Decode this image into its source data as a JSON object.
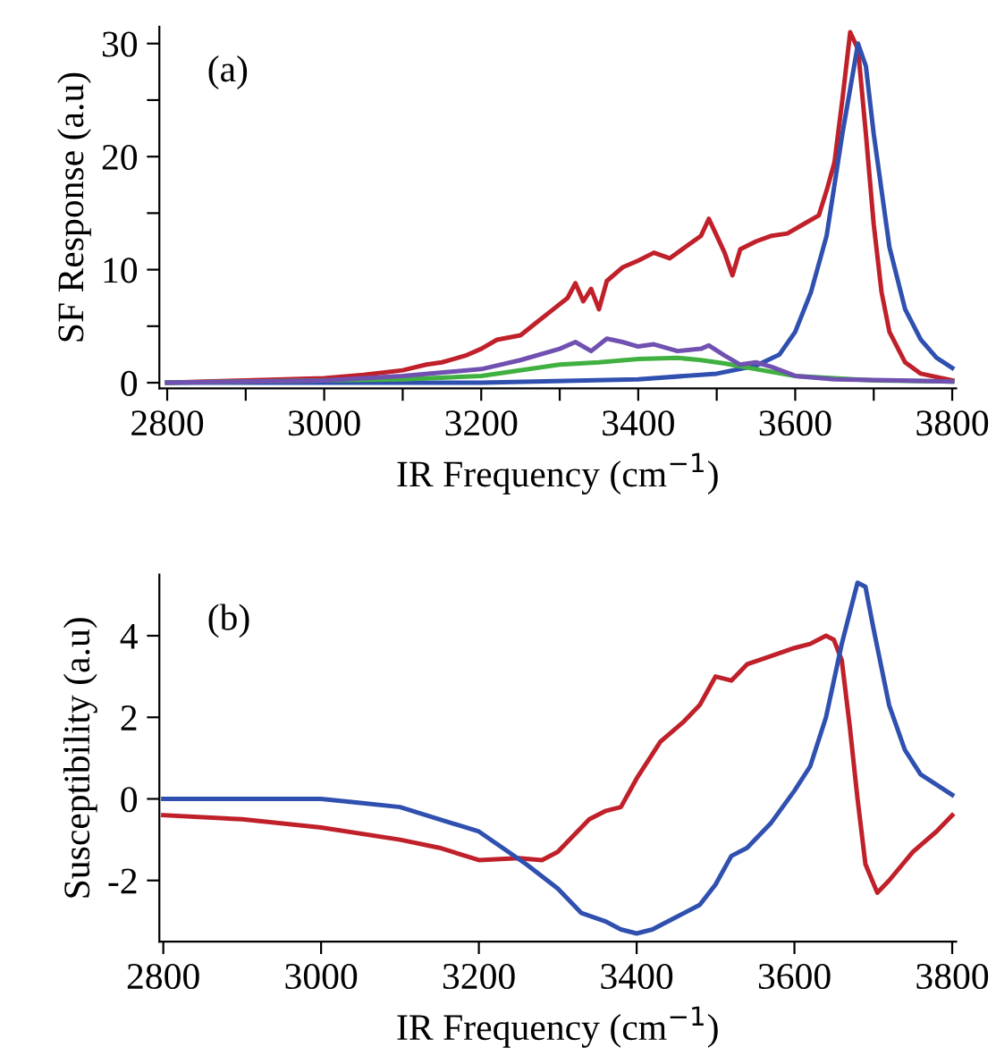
{
  "chart_data": [
    {
      "type": "line",
      "xlabel": "IR Frequency (cm$^{−1}$)",
      "ylabel": "SF Response (a.u)",
      "annotations": [
        "(a)"
      ],
      "xlim": [
        2790,
        3805
      ],
      "ylim": [
        -0.5,
        31.5
      ],
      "xticks": [
        2800,
        {
          "value": 2900,
          "label": null
        },
        3000,
        {
          "value": 3100,
          "label": null
        },
        3200,
        {
          "value": 3300,
          "label": null
        },
        3400,
        {
          "value": 3500,
          "label": null
        },
        3600,
        {
          "value": 3700,
          "label": null
        },
        3800
      ],
      "yticks": [
        0,
        {
          "value": 5,
          "label": null
        },
        10,
        {
          "value": 15,
          "label": null
        },
        20,
        {
          "value": 25,
          "label": null
        },
        30
      ],
      "grid": false,
      "legend": false,
      "line_style": "solid",
      "marker": "none",
      "series": [
        {
          "color": "#c0202a",
          "x": [
            2800,
            2900,
            3000,
            3050,
            3100,
            3130,
            3150,
            3180,
            3200,
            3220,
            3250,
            3270,
            3290,
            3310,
            3320,
            3330,
            3340,
            3350,
            3360,
            3380,
            3400,
            3420,
            3440,
            3460,
            3480,
            3490,
            3500,
            3510,
            3520,
            3530,
            3550,
            3570,
            3590,
            3610,
            3630,
            3640,
            3650,
            3660,
            3670,
            3680,
            3690,
            3700,
            3710,
            3720,
            3740,
            3760,
            3800
          ],
          "values": [
            0,
            0.2,
            0.4,
            0.7,
            1.1,
            1.6,
            1.8,
            2.4,
            3.0,
            3.8,
            4.2,
            5.3,
            6.4,
            7.5,
            8.8,
            7.2,
            8.3,
            6.5,
            9.0,
            10.2,
            10.8,
            11.5,
            11.0,
            12.0,
            13.0,
            14.5,
            13.0,
            11.5,
            9.5,
            11.8,
            12.5,
            13.0,
            13.2,
            14.0,
            14.8,
            17.0,
            19.5,
            25,
            31,
            29.5,
            22,
            14,
            8,
            4.5,
            1.8,
            0.8,
            0.2
          ]
        },
        {
          "color": "#3050b0",
          "x": [
            2800,
            3200,
            3400,
            3500,
            3550,
            3580,
            3600,
            3620,
            3640,
            3660,
            3680,
            3690,
            3700,
            3720,
            3740,
            3760,
            3780,
            3800
          ],
          "values": [
            0,
            0,
            0.3,
            0.8,
            1.5,
            2.5,
            4.5,
            8,
            13,
            22,
            30,
            28,
            22,
            12,
            6.5,
            3.8,
            2.2,
            1.3
          ]
        },
        {
          "color": "#40b040",
          "x": [
            2800,
            3100,
            3200,
            3300,
            3350,
            3400,
            3450,
            3480,
            3510,
            3550,
            3600,
            3700,
            3800
          ],
          "values": [
            0,
            0.3,
            0.6,
            1.6,
            1.8,
            2.1,
            2.2,
            2.0,
            1.7,
            1.2,
            0.6,
            0.2,
            0.1
          ]
        },
        {
          "color": "#7050b0",
          "x": [
            2800,
            3000,
            3100,
            3200,
            3250,
            3300,
            3320,
            3340,
            3360,
            3380,
            3400,
            3420,
            3450,
            3480,
            3490,
            3510,
            3530,
            3550,
            3570,
            3600,
            3650,
            3800
          ],
          "values": [
            0,
            0.2,
            0.6,
            1.2,
            2.0,
            3.0,
            3.6,
            2.8,
            3.9,
            3.6,
            3.2,
            3.4,
            2.8,
            3.0,
            3.3,
            2.4,
            1.6,
            1.8,
            1.4,
            0.6,
            0.3,
            0.1
          ]
        }
      ]
    },
    {
      "type": "line",
      "xlabel": "IR Frequency (cm$^{−1}$)",
      "ylabel": "Susceptibility (a.u)",
      "annotations": [
        "(b)"
      ],
      "xlim": [
        2795,
        3805
      ],
      "ylim": [
        -3.5,
        5.5
      ],
      "xticks": [
        2800,
        3000,
        3200,
        3400,
        3600,
        3800
      ],
      "yticks": [
        -2,
        0,
        2,
        4
      ],
      "grid": false,
      "legend": false,
      "line_style": "solid",
      "marker": "none",
      "series": [
        {
          "color": "#c0202a",
          "x": [
            2800,
            2900,
            3000,
            3100,
            3150,
            3200,
            3250,
            3280,
            3300,
            3320,
            3340,
            3360,
            3380,
            3400,
            3430,
            3460,
            3480,
            3500,
            3520,
            3540,
            3570,
            3600,
            3620,
            3640,
            3650,
            3660,
            3670,
            3680,
            3690,
            3705,
            3720,
            3750,
            3780,
            3800
          ],
          "values": [
            -0.4,
            -0.5,
            -0.7,
            -1.0,
            -1.2,
            -1.5,
            -1.45,
            -1.5,
            -1.3,
            -0.9,
            -0.5,
            -0.3,
            -0.2,
            0.5,
            1.4,
            1.9,
            2.3,
            3.0,
            2.9,
            3.3,
            3.5,
            3.7,
            3.8,
            4.0,
            3.9,
            3.4,
            1.8,
            0.0,
            -1.6,
            -2.3,
            -2.0,
            -1.3,
            -0.8,
            -0.4
          ]
        },
        {
          "color": "#3050b0",
          "x": [
            2800,
            3000,
            3050,
            3100,
            3150,
            3200,
            3230,
            3260,
            3300,
            3330,
            3360,
            3380,
            3400,
            3420,
            3450,
            3480,
            3500,
            3520,
            3540,
            3570,
            3600,
            3620,
            3640,
            3660,
            3680,
            3690,
            3700,
            3720,
            3740,
            3760,
            3800
          ],
          "values": [
            0,
            0,
            -0.1,
            -0.2,
            -0.5,
            -0.8,
            -1.2,
            -1.6,
            -2.2,
            -2.8,
            -3.0,
            -3.2,
            -3.3,
            -3.2,
            -2.9,
            -2.6,
            -2.1,
            -1.4,
            -1.2,
            -0.6,
            0.2,
            0.8,
            2.0,
            3.8,
            5.3,
            5.2,
            4.2,
            2.3,
            1.2,
            0.6,
            0.1
          ]
        }
      ]
    }
  ]
}
